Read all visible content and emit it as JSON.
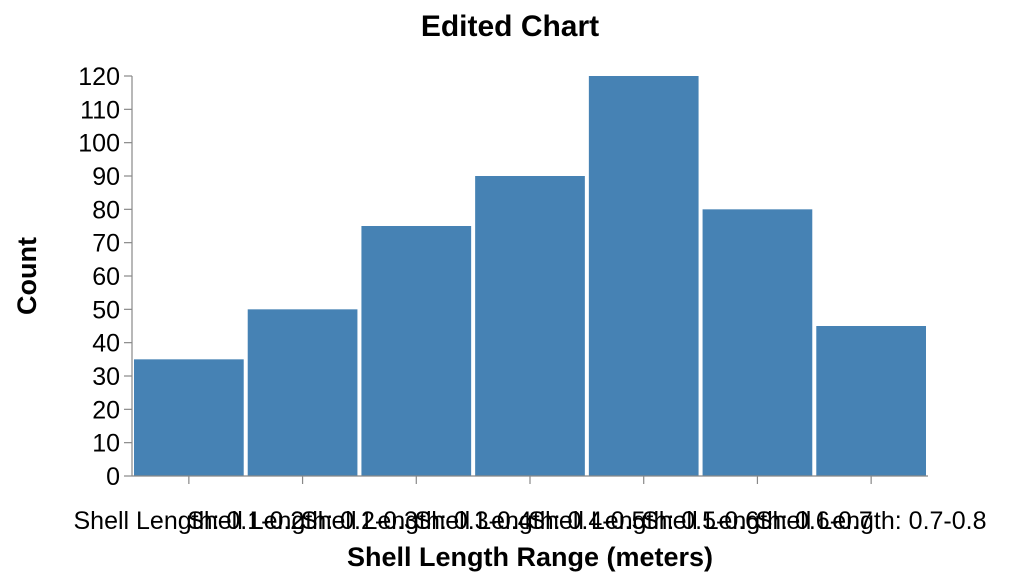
{
  "chart_data": {
    "type": "bar",
    "title": "Edited Chart",
    "xlabel": "Shell Length Range (meters)",
    "ylabel": "Count",
    "categories": [
      "Shell Length: 0.1-0.2",
      "Shell Length: 0.2-0.3",
      "Shell Length: 0.3-0.4",
      "Shell Length: 0.4-0.5",
      "Shell Length: 0.5-0.6",
      "Shell Length: 0.6-0.7",
      "Shell Length: 0.7-0.8"
    ],
    "values": [
      35,
      50,
      75,
      90,
      120,
      80,
      45
    ],
    "ylim": [
      0,
      120
    ],
    "yticks": [
      0,
      10,
      20,
      30,
      40,
      50,
      60,
      70,
      80,
      90,
      100,
      110,
      120
    ],
    "grid": false,
    "bar_color": "#4682b4"
  }
}
